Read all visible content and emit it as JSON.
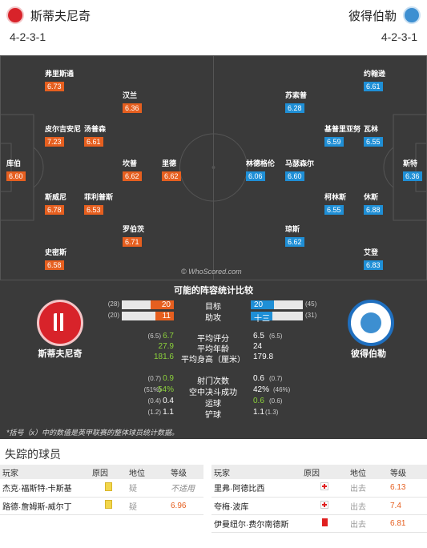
{
  "header": {
    "home_name": "斯蒂夫尼奇",
    "away_name": "彼得伯勒",
    "home_formation": "4-2-3-1",
    "away_formation": "4-2-3-1"
  },
  "colors": {
    "home": "#e65f1f",
    "away": "#1f8fd6",
    "pitch": "#3a3a3a"
  },
  "home_players": [
    {
      "name": "弗里斯通",
      "rating": "6.73"
    },
    {
      "name": "汉兰",
      "rating": "6.36"
    },
    {
      "name": "皮尔吉安尼",
      "rating": "7.23"
    },
    {
      "name": "汤普森",
      "rating": "6.61"
    },
    {
      "name": "库伯",
      "rating": "6.60"
    },
    {
      "name": "坎普",
      "rating": "6.62"
    },
    {
      "name": "里德",
      "rating": "6.62"
    },
    {
      "name": "斯威尼",
      "rating": "6.78"
    },
    {
      "name": "菲利普斯",
      "rating": "6.53"
    },
    {
      "name": "罗伯茨",
      "rating": "6.71"
    },
    {
      "name": "史密斯",
      "rating": "6.58"
    }
  ],
  "away_players": [
    {
      "name": "约翰逊",
      "rating": "6.61"
    },
    {
      "name": "苏索普",
      "rating": "6.28"
    },
    {
      "name": "基普里亚努",
      "rating": "6.59"
    },
    {
      "name": "瓦林",
      "rating": "6.55"
    },
    {
      "name": "林德格伦",
      "rating": "6.06"
    },
    {
      "name": "马瑟森尔",
      "rating": "6.60"
    },
    {
      "name": "斯特",
      "rating": "6.36"
    },
    {
      "name": "柯林斯",
      "rating": "6.55"
    },
    {
      "name": "休斯",
      "rating": "6.88"
    },
    {
      "name": "琼斯",
      "rating": "6.62"
    },
    {
      "name": "艾登",
      "rating": "6.83"
    }
  ],
  "watermark": "© WhoScored.com",
  "comparison": {
    "title": "可能的阵容统计比较",
    "home_crest_name": "斯蒂夫尼奇",
    "away_crest_name": "彼得伯勒",
    "bars": [
      {
        "label": "目标",
        "home": "20",
        "home_small": "(28)",
        "away": "20",
        "away_small": "(45)",
        "home_frac": 0.44,
        "away_frac": 0.44
      },
      {
        "label": "助攻",
        "home": "11",
        "home_small": "(20)",
        "away": "十三",
        "away_small": "(31)",
        "home_frac": 0.35,
        "away_frac": 0.42
      }
    ],
    "stats1": [
      {
        "label": "平均评分",
        "home": "6.7",
        "home_small": "(6.5)",
        "away": "6.5",
        "away_small": "(6.5)"
      },
      {
        "label": "平均年龄",
        "home": "27.9",
        "home_small": "",
        "away": "24",
        "away_small": ""
      },
      {
        "label": "平均身高（厘米）",
        "home": "181.6",
        "home_small": "",
        "away": "179.8",
        "away_small": ""
      }
    ],
    "stats2": [
      {
        "label": "射门次数",
        "home": "0.9",
        "home_small": "(0.7)",
        "away": "0.6",
        "away_small": "(0.7)"
      },
      {
        "label": "空中决斗成功",
        "home": "54%",
        "home_small": "(51%)",
        "away": "42%",
        "away_small": "(46%)"
      },
      {
        "label": "运球",
        "home": "0.4",
        "home_small": "(0.4)",
        "away": "0.6",
        "away_small": "(0.6)"
      },
      {
        "label": "铲球",
        "home": "1.1",
        "home_small": "(1.2)",
        "away": "1.1",
        "away_small": "(1.3)"
      }
    ],
    "note": "*括号（x）中的数值是英甲联赛的整体球员统计数据。"
  },
  "missing": {
    "title": "失踪的球员",
    "headers": [
      "玩家",
      "原因",
      "地位",
      "等级"
    ],
    "home_rows": [
      {
        "player": "杰克·福斯特-卡斯基",
        "reason_icon": "doubt-icon",
        "status": "疑",
        "rating": "不适用"
      },
      {
        "player": "路德·詹姆斯-威尔丁",
        "reason_icon": "doubt-icon",
        "status": "疑",
        "rating": "6.96"
      }
    ],
    "away_rows": [
      {
        "player": "里弗·阿德比西",
        "reason_icon": "injury-icon",
        "status": "出去",
        "rating": "6.13"
      },
      {
        "player": "夸梅·波库",
        "reason_icon": "injury-icon",
        "status": "出去",
        "rating": "7.4"
      },
      {
        "player": "伊曼纽尔·费尔南德斯",
        "reason_icon": "red-card-icon",
        "status": "出去",
        "rating": "6.81"
      }
    ]
  }
}
